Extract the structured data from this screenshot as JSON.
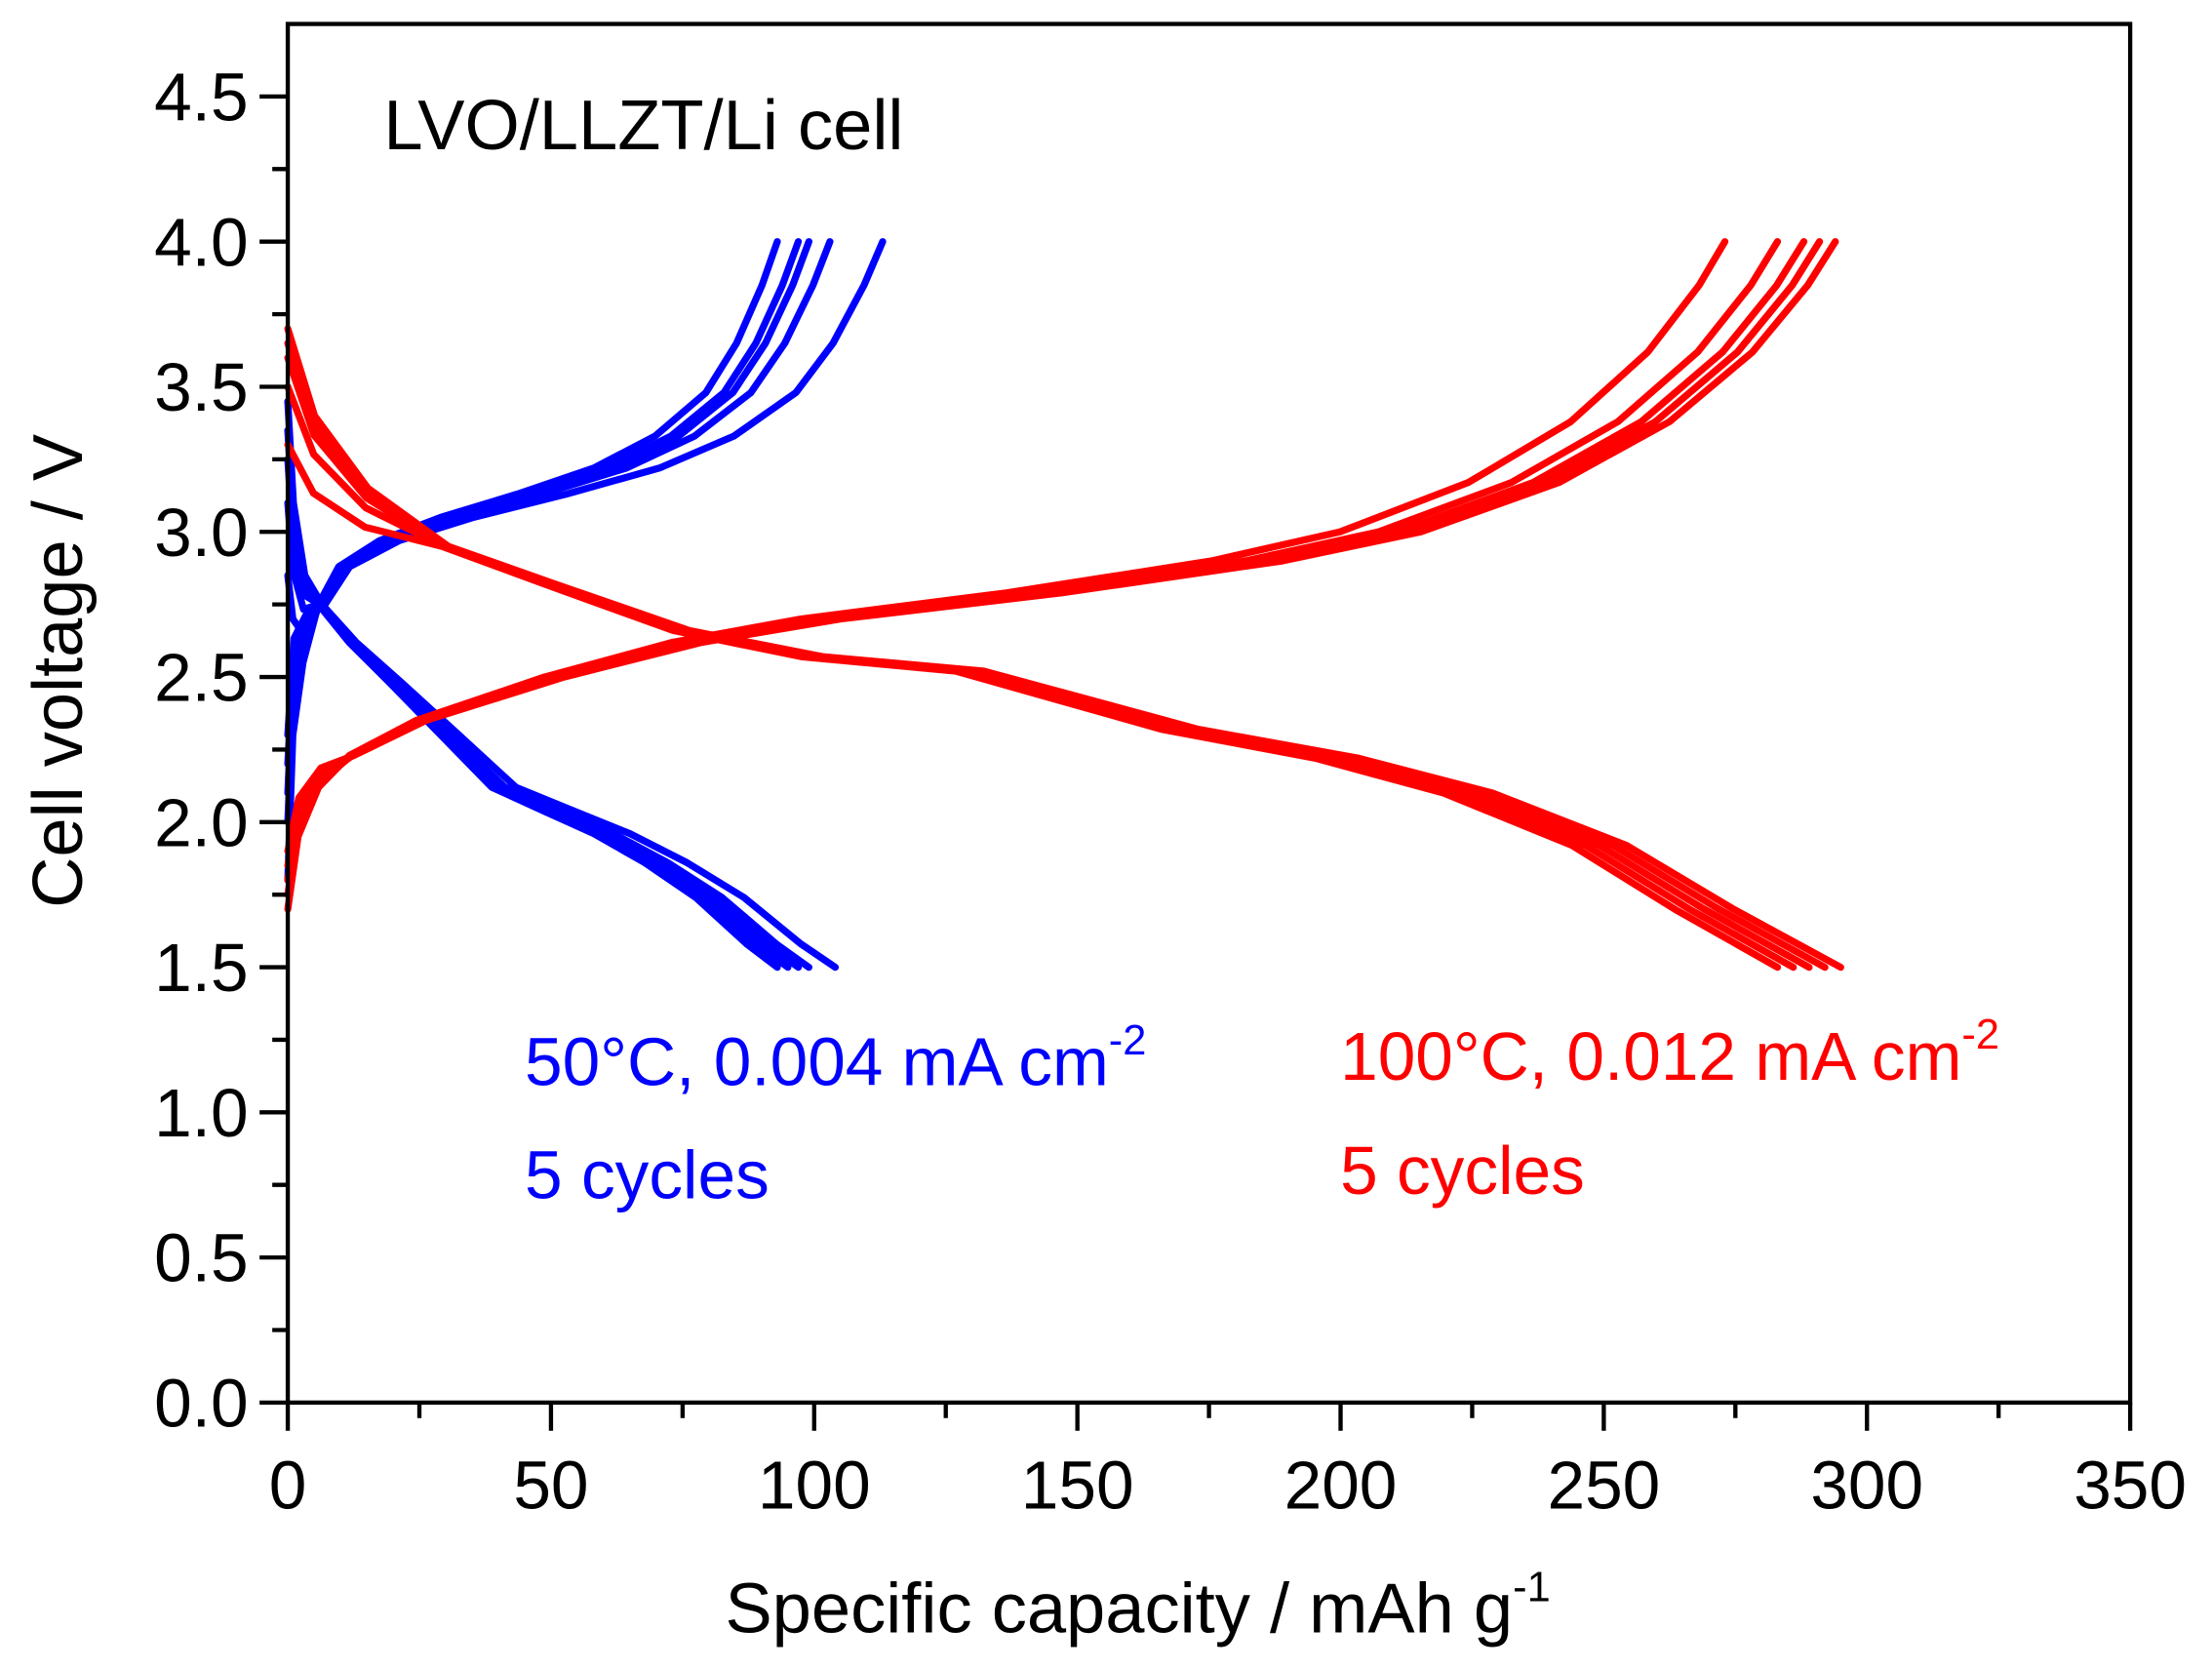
{
  "chart_data": {
    "type": "line",
    "title": "",
    "annotation": "LVO/LLZT/Li cell",
    "xlabel": "Specific capacity / mAh g",
    "xlabel_sup": "-1",
    "ylabel": "Cell voltage / V",
    "xlim": [
      0,
      350
    ],
    "ylim": [
      0,
      4.75
    ],
    "xticks": [
      0,
      50,
      100,
      150,
      200,
      250,
      300,
      350
    ],
    "xtick_labels": [
      "0",
      "50",
      "100",
      "150",
      "200",
      "250",
      "300",
      "350"
    ],
    "yticks": [
      0,
      0.5,
      1.0,
      1.5,
      2.0,
      2.5,
      3.0,
      3.5,
      4.0,
      4.5
    ],
    "ytick_labels": [
      "0.0",
      "0.5",
      "1.0",
      "1.5",
      "2.0",
      "2.5",
      "3.0",
      "3.5",
      "4.0",
      "4.5"
    ],
    "grid": false,
    "legend_text": [
      {
        "line1": "50°C, 0.004 mA cm",
        "sup": "-2",
        "line2": "5 cycles",
        "color": "#0000ff"
      },
      {
        "line1": "100°C, 0.012 mA cm",
        "sup": "-2",
        "line2": "5 cycles",
        "color": "#ff0000"
      }
    ],
    "series_groups": [
      {
        "name": "50°C, 0.004 mA cm-2",
        "color": "#0000ff",
        "charge_base": [
          [
            0,
            1.8
          ],
          [
            1,
            2.3
          ],
          [
            3,
            2.55
          ],
          [
            6,
            2.75
          ],
          [
            10,
            2.88
          ],
          [
            18,
            2.97
          ],
          [
            30,
            3.05
          ],
          [
            45,
            3.13
          ],
          [
            60,
            3.22
          ],
          [
            72,
            3.33
          ],
          [
            82,
            3.48
          ],
          [
            88,
            3.65
          ],
          [
            93,
            3.85
          ],
          [
            96,
            4.0
          ]
        ],
        "charge_end_capacity": [
          93,
          97,
          99,
          103,
          113
        ],
        "charge_start_voltage": [
          1.8,
          2.0,
          2.1,
          2.2,
          2.3
        ],
        "discharge_base": [
          [
            0,
            3.45
          ],
          [
            1,
            3.1
          ],
          [
            3,
            2.85
          ],
          [
            6,
            2.75
          ],
          [
            12,
            2.62
          ],
          [
            20,
            2.48
          ],
          [
            30,
            2.3
          ],
          [
            40,
            2.12
          ],
          [
            50,
            2.04
          ],
          [
            60,
            1.96
          ],
          [
            70,
            1.86
          ],
          [
            80,
            1.74
          ],
          [
            90,
            1.58
          ],
          [
            96,
            1.5
          ]
        ],
        "discharge_end_capacity": [
          93,
          95,
          97,
          99,
          104
        ],
        "discharge_start_voltage": [
          2.85,
          3.1,
          3.25,
          3.35,
          3.45
        ]
      },
      {
        "name": "100°C, 0.012 mA cm-2",
        "color": "#ff0000",
        "charge_base": [
          [
            0,
            1.7
          ],
          [
            2,
            1.95
          ],
          [
            6,
            2.12
          ],
          [
            12,
            2.23
          ],
          [
            25,
            2.35
          ],
          [
            50,
            2.5
          ],
          [
            75,
            2.62
          ],
          [
            100,
            2.7
          ],
          [
            140,
            2.79
          ],
          [
            180,
            2.9
          ],
          [
            205,
            3.0
          ],
          [
            230,
            3.17
          ],
          [
            250,
            3.38
          ],
          [
            265,
            3.62
          ],
          [
            275,
            3.85
          ],
          [
            280,
            4.0
          ]
        ],
        "charge_end_capacity": [
          273,
          283,
          288,
          291,
          294
        ],
        "charge_start_voltage": [
          1.7,
          1.75,
          1.8,
          1.85,
          1.9
        ],
        "discharge_base": [
          [
            0,
            3.7
          ],
          [
            5,
            3.4
          ],
          [
            15,
            3.15
          ],
          [
            30,
            2.95
          ],
          [
            50,
            2.82
          ],
          [
            75,
            2.66
          ],
          [
            100,
            2.57
          ],
          [
            130,
            2.52
          ],
          [
            150,
            2.42
          ],
          [
            170,
            2.32
          ],
          [
            200,
            2.22
          ],
          [
            225,
            2.1
          ],
          [
            250,
            1.92
          ],
          [
            270,
            1.7
          ],
          [
            290,
            1.5
          ]
        ],
        "discharge_end_capacity": [
          283,
          286,
          289,
          292,
          295
        ],
        "discharge_start_voltage": [
          3.3,
          3.5,
          3.6,
          3.65,
          3.7
        ]
      }
    ]
  }
}
